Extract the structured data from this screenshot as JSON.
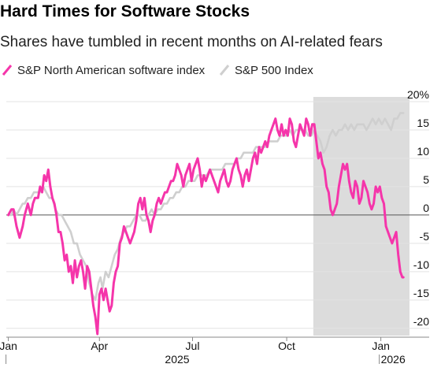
{
  "title": "Hard Times for Software Stocks",
  "subtitle": "Shares have tumbled in recent months on AI-related fears",
  "chart_data": {
    "type": "line",
    "ylim": [
      -21,
      20
    ],
    "y_ticks": [
      20,
      15,
      10,
      5,
      0,
      -5,
      -10,
      -15,
      -20
    ],
    "y_tick_labels": [
      "20%",
      "15",
      "10",
      "5",
      "0",
      "-5",
      "-10",
      "-15",
      "-20"
    ],
    "x_ticks": [
      {
        "label": "Jan",
        "x": 0
      },
      {
        "label": "Apr",
        "x": 89
      },
      {
        "label": "Jul",
        "x": 180
      },
      {
        "label": "Oct",
        "x": 272
      },
      {
        "label": "Jan",
        "x": 364
      }
    ],
    "year_labels": [
      {
        "label": "2025",
        "x": 165
      },
      {
        "label": "2026",
        "x": 364
      }
    ],
    "xlim": [
      -2,
      392
    ],
    "grid": true,
    "legend_position": "top-left",
    "shaded_region": {
      "x_start": 298,
      "x_end": 392,
      "color": "#dcdcdc"
    },
    "series": [
      {
        "name": "S&P North American software index",
        "color": "#f535aa",
        "points": [
          [
            0,
            0
          ],
          [
            3,
            1
          ],
          [
            5,
            1
          ],
          [
            8,
            -2
          ],
          [
            11,
            -4
          ],
          [
            14,
            -2
          ],
          [
            16,
            0
          ],
          [
            19,
            2
          ],
          [
            22,
            0
          ],
          [
            24,
            2
          ],
          [
            26,
            3
          ],
          [
            29,
            3
          ],
          [
            31,
            5
          ],
          [
            33,
            4
          ],
          [
            35,
            7
          ],
          [
            37,
            6
          ],
          [
            39,
            8
          ],
          [
            41,
            5
          ],
          [
            43,
            3
          ],
          [
            45,
            2
          ],
          [
            47,
            0
          ],
          [
            49,
            -3
          ],
          [
            51,
            -3
          ],
          [
            53,
            -5
          ],
          [
            55,
            -8
          ],
          [
            57,
            -7
          ],
          [
            59,
            -10
          ],
          [
            61,
            -9
          ],
          [
            63,
            -12
          ],
          [
            65,
            -8
          ],
          [
            67,
            -11
          ],
          [
            69,
            -9
          ],
          [
            71,
            -8
          ],
          [
            73,
            -10
          ],
          [
            75,
            -13
          ],
          [
            77,
            -9
          ],
          [
            79,
            -10
          ],
          [
            81,
            -13
          ],
          [
            83,
            -16
          ],
          [
            85,
            -18
          ],
          [
            87,
            -21
          ],
          [
            89,
            -14
          ],
          [
            91,
            -13
          ],
          [
            93,
            -15
          ],
          [
            95,
            -13
          ],
          [
            97,
            -15
          ],
          [
            99,
            -17
          ],
          [
            101,
            -16
          ],
          [
            103,
            -12
          ],
          [
            105,
            -10
          ],
          [
            107,
            -9
          ],
          [
            109,
            -5
          ],
          [
            111,
            -4
          ],
          [
            113,
            -2
          ],
          [
            115,
            -3
          ],
          [
            117,
            -4
          ],
          [
            119,
            -5
          ],
          [
            121,
            -4
          ],
          [
            123,
            -3
          ],
          [
            125,
            -1
          ],
          [
            127,
            2
          ],
          [
            129,
            3
          ],
          [
            131,
            1
          ],
          [
            133,
            3
          ],
          [
            135,
            0
          ],
          [
            137,
            -1
          ],
          [
            139,
            -3
          ],
          [
            141,
            -1
          ],
          [
            143,
            0
          ],
          [
            145,
            2
          ],
          [
            147,
            3
          ],
          [
            149,
            2
          ],
          [
            151,
            3
          ],
          [
            153,
            4
          ],
          [
            155,
            4
          ],
          [
            157,
            5
          ],
          [
            159,
            6
          ],
          [
            161,
            6
          ],
          [
            163,
            7
          ],
          [
            165,
            9
          ],
          [
            167,
            8
          ],
          [
            169,
            7
          ],
          [
            171,
            5
          ],
          [
            173,
            7
          ],
          [
            175,
            8
          ],
          [
            177,
            9
          ],
          [
            179,
            6
          ],
          [
            181,
            8
          ],
          [
            183,
            9
          ],
          [
            185,
            10
          ],
          [
            187,
            8
          ],
          [
            189,
            5
          ],
          [
            191,
            7
          ],
          [
            193,
            6
          ],
          [
            195,
            7
          ],
          [
            197,
            8
          ],
          [
            199,
            7
          ],
          [
            201,
            6
          ],
          [
            203,
            5
          ],
          [
            205,
            4
          ],
          [
            207,
            6
          ],
          [
            209,
            7
          ],
          [
            211,
            8
          ],
          [
            213,
            6
          ],
          [
            215,
            5
          ],
          [
            217,
            6
          ],
          [
            219,
            8
          ],
          [
            221,
            9
          ],
          [
            223,
            10
          ],
          [
            225,
            8
          ],
          [
            227,
            7
          ],
          [
            229,
            5
          ],
          [
            231,
            7
          ],
          [
            233,
            8
          ],
          [
            235,
            6
          ],
          [
            237,
            8
          ],
          [
            239,
            10
          ],
          [
            241,
            11
          ],
          [
            243,
            9
          ],
          [
            245,
            12
          ],
          [
            247,
            11
          ],
          [
            249,
            12
          ],
          [
            251,
            13
          ],
          [
            253,
            12
          ],
          [
            255,
            14
          ],
          [
            257,
            15
          ],
          [
            259,
            16
          ],
          [
            261,
            17
          ],
          [
            263,
            15
          ],
          [
            265,
            14
          ],
          [
            267,
            16
          ],
          [
            269,
            14
          ],
          [
            271,
            15
          ],
          [
            273,
            14
          ],
          [
            275,
            17
          ],
          [
            277,
            16
          ],
          [
            279,
            13
          ],
          [
            281,
            12
          ],
          [
            283,
            14
          ],
          [
            285,
            16
          ],
          [
            287,
            15
          ],
          [
            289,
            14
          ],
          [
            291,
            17
          ],
          [
            293,
            16
          ],
          [
            295,
            14
          ],
          [
            297,
            16
          ],
          [
            299,
            16
          ],
          [
            301,
            13
          ],
          [
            303,
            10
          ],
          [
            305,
            11
          ],
          [
            307,
            9
          ],
          [
            309,
            8
          ],
          [
            311,
            5
          ],
          [
            313,
            4
          ],
          [
            315,
            1
          ],
          [
            317,
            0
          ],
          [
            319,
            1
          ],
          [
            321,
            2
          ],
          [
            323,
            5
          ],
          [
            325,
            7
          ],
          [
            327,
            9
          ],
          [
            329,
            8
          ],
          [
            331,
            9
          ],
          [
            333,
            6
          ],
          [
            335,
            4
          ],
          [
            337,
            3
          ],
          [
            339,
            6
          ],
          [
            341,
            5
          ],
          [
            343,
            2
          ],
          [
            345,
            3
          ],
          [
            347,
            6
          ],
          [
            349,
            5
          ],
          [
            351,
            4
          ],
          [
            353,
            2
          ],
          [
            355,
            1
          ],
          [
            357,
            2
          ],
          [
            359,
            5
          ],
          [
            361,
            4
          ],
          [
            363,
            5
          ],
          [
            365,
            3
          ],
          [
            367,
            2
          ],
          [
            369,
            -2
          ],
          [
            371,
            -3
          ],
          [
            373,
            -4
          ],
          [
            375,
            -5
          ],
          [
            377,
            -4
          ],
          [
            379,
            -3
          ],
          [
            381,
            -7
          ],
          [
            383,
            -10
          ],
          [
            385,
            -11
          ],
          [
            386,
            -11
          ]
        ]
      },
      {
        "name": "S&P 500 Index",
        "color": "#cfcfcf",
        "points": [
          [
            0,
            0
          ],
          [
            3,
            0
          ],
          [
            5,
            1
          ],
          [
            8,
            0
          ],
          [
            11,
            1
          ],
          [
            14,
            2
          ],
          [
            16,
            2
          ],
          [
            19,
            3
          ],
          [
            22,
            3
          ],
          [
            25,
            4
          ],
          [
            28,
            4
          ],
          [
            31,
            4
          ],
          [
            34,
            5
          ],
          [
            37,
            4
          ],
          [
            40,
            3
          ],
          [
            43,
            3
          ],
          [
            46,
            1
          ],
          [
            49,
            0
          ],
          [
            52,
            0
          ],
          [
            55,
            -1
          ],
          [
            58,
            -2
          ],
          [
            61,
            -3
          ],
          [
            64,
            -5
          ],
          [
            67,
            -5
          ],
          [
            70,
            -7
          ],
          [
            73,
            -8
          ],
          [
            76,
            -9
          ],
          [
            79,
            -12
          ],
          [
            82,
            -14
          ],
          [
            85,
            -15
          ],
          [
            88,
            -12
          ],
          [
            90,
            -11
          ],
          [
            92,
            -13
          ],
          [
            95,
            -10
          ],
          [
            98,
            -11
          ],
          [
            101,
            -9
          ],
          [
            104,
            -7
          ],
          [
            107,
            -6
          ],
          [
            110,
            -4
          ],
          [
            113,
            -3
          ],
          [
            116,
            -2
          ],
          [
            119,
            -2
          ],
          [
            122,
            -1
          ],
          [
            125,
            0
          ],
          [
            128,
            0
          ],
          [
            131,
            -1
          ],
          [
            134,
            -1
          ],
          [
            137,
            0
          ],
          [
            140,
            1
          ],
          [
            143,
            0
          ],
          [
            146,
            1
          ],
          [
            149,
            1
          ],
          [
            152,
            2
          ],
          [
            155,
            2
          ],
          [
            158,
            3
          ],
          [
            161,
            3
          ],
          [
            164,
            4
          ],
          [
            167,
            4
          ],
          [
            170,
            5
          ],
          [
            173,
            5
          ],
          [
            176,
            6
          ],
          [
            179,
            6
          ],
          [
            182,
            6
          ],
          [
            185,
            7
          ],
          [
            188,
            7
          ],
          [
            191,
            7
          ],
          [
            194,
            7
          ],
          [
            197,
            8
          ],
          [
            200,
            8
          ],
          [
            203,
            8
          ],
          [
            206,
            8
          ],
          [
            209,
            8
          ],
          [
            212,
            9
          ],
          [
            215,
            9
          ],
          [
            218,
            9
          ],
          [
            221,
            9
          ],
          [
            224,
            10
          ],
          [
            227,
            10
          ],
          [
            230,
            11
          ],
          [
            233,
            11
          ],
          [
            236,
            11
          ],
          [
            239,
            11
          ],
          [
            242,
            12
          ],
          [
            245,
            12
          ],
          [
            248,
            12
          ],
          [
            251,
            12
          ],
          [
            254,
            13
          ],
          [
            257,
            13
          ],
          [
            260,
            13
          ],
          [
            263,
            13
          ],
          [
            266,
            14
          ],
          [
            269,
            14
          ],
          [
            272,
            14
          ],
          [
            275,
            15
          ],
          [
            278,
            14
          ],
          [
            281,
            15
          ],
          [
            284,
            15
          ],
          [
            287,
            15
          ],
          [
            290,
            15
          ],
          [
            293,
            14
          ],
          [
            296,
            14
          ],
          [
            299,
            15
          ],
          [
            302,
            14
          ],
          [
            305,
            13
          ],
          [
            308,
            11
          ],
          [
            311,
            12
          ],
          [
            314,
            14
          ],
          [
            317,
            15
          ],
          [
            320,
            14
          ],
          [
            323,
            15
          ],
          [
            326,
            15
          ],
          [
            329,
            16
          ],
          [
            332,
            15
          ],
          [
            335,
            16
          ],
          [
            338,
            15
          ],
          [
            341,
            16
          ],
          [
            344,
            16
          ],
          [
            347,
            16
          ],
          [
            350,
            15
          ],
          [
            353,
            16
          ],
          [
            356,
            17
          ],
          [
            359,
            16
          ],
          [
            362,
            17
          ],
          [
            365,
            16
          ],
          [
            368,
            17
          ],
          [
            371,
            16
          ],
          [
            374,
            15
          ],
          [
            377,
            17
          ],
          [
            380,
            17
          ],
          [
            383,
            18
          ],
          [
            386,
            18
          ]
        ]
      }
    ]
  }
}
